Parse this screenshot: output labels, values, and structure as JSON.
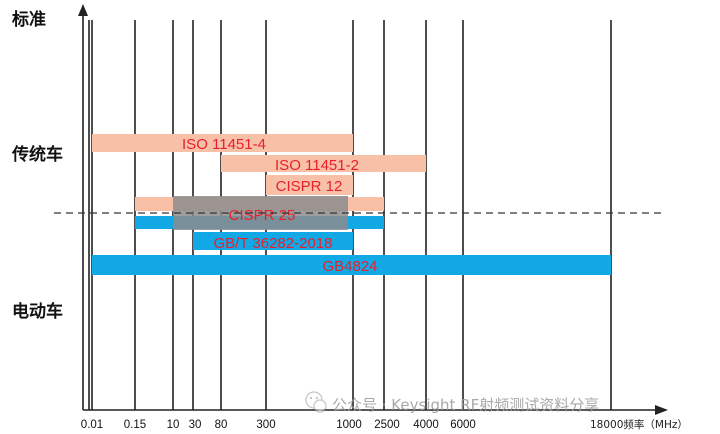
{
  "chart_data": {
    "type": "bar",
    "orientation": "horizontal-range",
    "xlabel": "18000频率（MHz）",
    "x_ticks": [
      "0.01",
      "0.15",
      "10",
      "30",
      "80",
      "300",
      "1000",
      "2500",
      "4000",
      "6000",
      "18000"
    ],
    "y_labels": [
      "标准",
      "传统车",
      "电动车"
    ],
    "bars": [
      {
        "label": "ISO 11451-4",
        "start": "0.01",
        "end": "1000",
        "color": "#f9c0a8"
      },
      {
        "label": "ISO 11451-2",
        "start": "80",
        "end": "4000",
        "color": "#f9c0a8"
      },
      {
        "label": "CISPR 12",
        "start": "300",
        "end": "1000",
        "color": "#f9c0a8"
      },
      {
        "label": "CISPR 25",
        "start": "0.15",
        "end": "2500",
        "color": "#f9c0a8"
      },
      {
        "label": "",
        "start": "0.15",
        "end": "2500",
        "color": "#12a8e6"
      },
      {
        "label": "GB/T 36282-2018",
        "start": "30",
        "end": "1000",
        "color": "#12a8e6"
      },
      {
        "label": "GB4824",
        "start": "0.01",
        "end": "18000",
        "color": "#12a8e6"
      }
    ],
    "overlay_color": "#8c8c8c",
    "divider": "dashed"
  },
  "watermark": "公众号 · Keysight RF射频测试资料分享",
  "watermark_icon": "wechat-icon"
}
